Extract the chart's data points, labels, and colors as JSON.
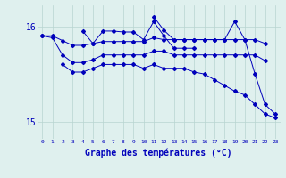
{
  "background_color": "#dff0ee",
  "grid_color": "#b8d4d0",
  "line_color": "#0000bb",
  "xlabel": "Graphe des températures (°C)",
  "ylim": [
    14.82,
    16.22
  ],
  "yticks": [
    15,
    16
  ],
  "hours": [
    0,
    1,
    2,
    3,
    4,
    5,
    6,
    7,
    8,
    9,
    10,
    11,
    12,
    13,
    14,
    15,
    16,
    17,
    18,
    19,
    20,
    21,
    22,
    23
  ],
  "series": [
    [
      15.9,
      15.9,
      15.85,
      15.8,
      15.8,
      15.82,
      15.84,
      15.84,
      15.84,
      15.84,
      15.84,
      15.88,
      15.86,
      15.86,
      15.86,
      15.86,
      15.86,
      15.86,
      15.86,
      15.86,
      15.86,
      15.86,
      15.82,
      null
    ],
    [
      null,
      null,
      null,
      null,
      15.95,
      15.82,
      15.95,
      15.95,
      15.94,
      15.94,
      15.86,
      16.05,
      15.9,
      15.77,
      15.77,
      15.77,
      null,
      null,
      null,
      null,
      null,
      null,
      null,
      null
    ],
    [
      null,
      null,
      null,
      null,
      null,
      null,
      null,
      null,
      null,
      null,
      null,
      16.1,
      15.96,
      15.86,
      15.86,
      15.86,
      15.86,
      15.86,
      15.86,
      16.05,
      15.86,
      15.5,
      15.18,
      15.08
    ],
    [
      15.9,
      15.88,
      15.7,
      15.62,
      15.62,
      15.65,
      15.7,
      15.7,
      15.7,
      15.7,
      15.7,
      15.74,
      15.74,
      15.7,
      15.7,
      15.7,
      15.7,
      15.7,
      15.7,
      15.7,
      15.7,
      15.7,
      15.64,
      null
    ],
    [
      null,
      null,
      15.6,
      15.52,
      15.52,
      15.56,
      15.6,
      15.6,
      15.6,
      15.6,
      15.56,
      15.6,
      15.56,
      15.56,
      15.56,
      15.52,
      15.5,
      15.44,
      15.38,
      15.32,
      15.28,
      15.18,
      15.08,
      15.04
    ]
  ]
}
